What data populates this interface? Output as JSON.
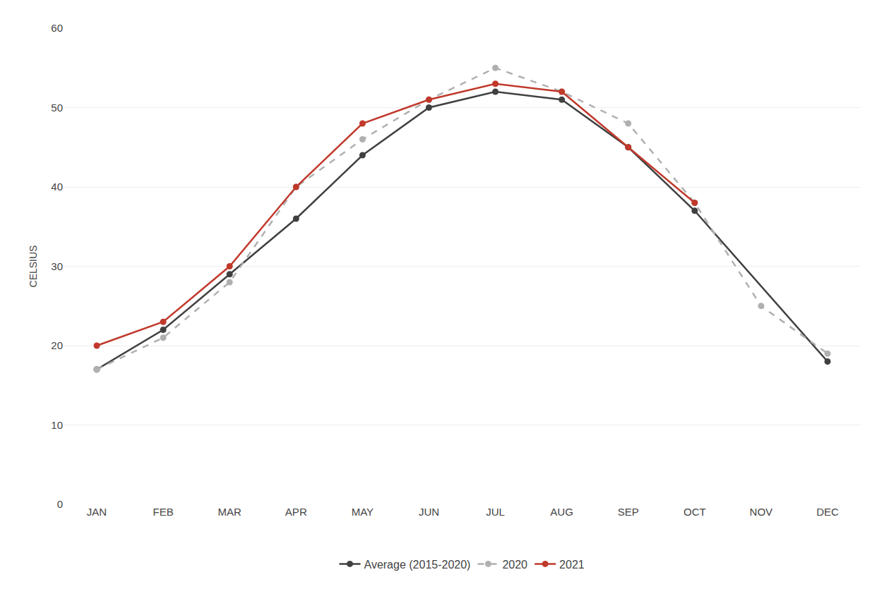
{
  "chart_data": {
    "type": "line",
    "ylabel": "CELSIUS",
    "categories": [
      "JAN",
      "FEB",
      "MAR",
      "APR",
      "MAY",
      "JUN",
      "JUL",
      "AUG",
      "SEP",
      "OCT",
      "NOV",
      "DEC"
    ],
    "series": [
      {
        "name": "Average (2015-2020)",
        "color": "#404040",
        "marker": "circle",
        "line_style": "solid",
        "values": [
          17,
          22,
          29,
          36,
          44,
          50,
          52,
          51,
          45,
          37,
          null,
          18
        ]
      },
      {
        "name": "2020",
        "color": "#b0b0b0",
        "marker": "circle",
        "line_style": "dashed",
        "values": [
          17,
          21,
          28,
          40,
          46,
          51,
          55,
          52,
          48,
          38,
          25,
          19
        ]
      },
      {
        "name": "2021",
        "color": "#c0392b",
        "marker": "circle",
        "line_style": "solid",
        "values": [
          20,
          23,
          30,
          40,
          48,
          51,
          53,
          52,
          45,
          38,
          null,
          null
        ]
      }
    ],
    "ylim": [
      0,
      60
    ],
    "yticks": [
      0,
      10,
      20,
      30,
      40,
      50,
      60
    ],
    "grid": true,
    "legend": "bottom"
  }
}
